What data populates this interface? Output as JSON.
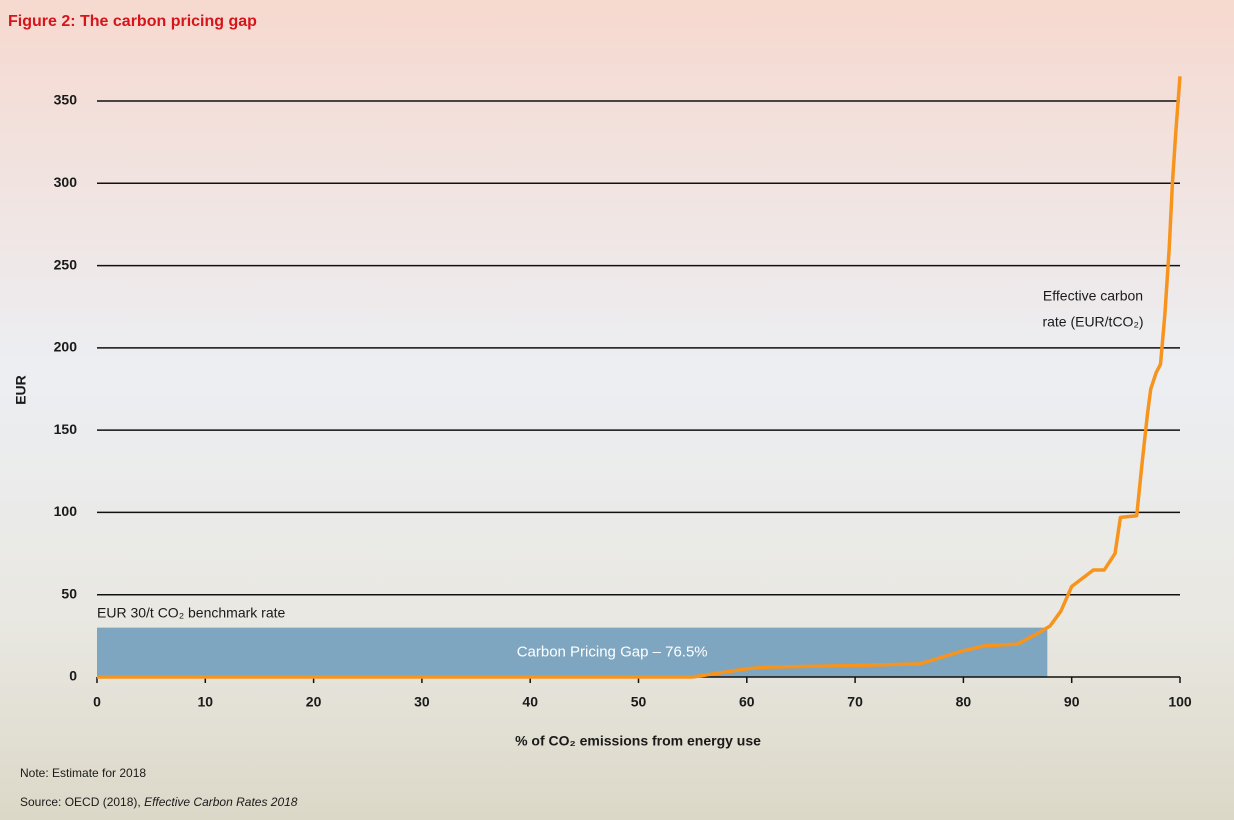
{
  "chart_data": {
    "type": "line",
    "title": "Figure 2: The carbon pricing gap",
    "y_label": "EUR",
    "x_label": "% of CO₂ emissions from energy use",
    "line_annotation": [
      "Effective carbon",
      "rate (EUR/tCO₂)"
    ],
    "benchmark_label": "EUR 30/t CO₂ benchmark rate",
    "benchmark": 30,
    "gap_label": "Carbon Pricing Gap – 76.5%",
    "note": "Note: Estimate for 2018",
    "source": [
      "Source: OECD (2018), ",
      "Effective Carbon Rates 2018"
    ],
    "xlim": [
      0,
      100
    ],
    "ylim": [
      0,
      350
    ],
    "xticks": [
      0,
      10,
      20,
      30,
      40,
      50,
      60,
      70,
      80,
      90,
      100
    ],
    "yticks": [
      0,
      50,
      100,
      150,
      200,
      250,
      300,
      350
    ],
    "grid": true,
    "series": [
      {
        "name": "Effective carbon rate",
        "color": "#f7941d",
        "x": [
          0,
          55,
          57,
          60,
          62,
          70,
          76,
          78,
          80,
          82,
          85,
          87,
          88,
          89,
          90,
          91,
          92,
          93,
          94,
          94.5,
          96,
          96.5,
          97,
          97.3,
          97.8,
          98.2,
          98.6,
          99,
          99.3,
          99.6,
          100
        ],
        "values": [
          0,
          0,
          2,
          5,
          6,
          7,
          8,
          12,
          16,
          19,
          20,
          27,
          31,
          40,
          55,
          60,
          65,
          65,
          75,
          97,
          98,
          130,
          160,
          175,
          185,
          190,
          220,
          260,
          300,
          330,
          365
        ]
      }
    ],
    "band_color": "#7ea6c0"
  }
}
